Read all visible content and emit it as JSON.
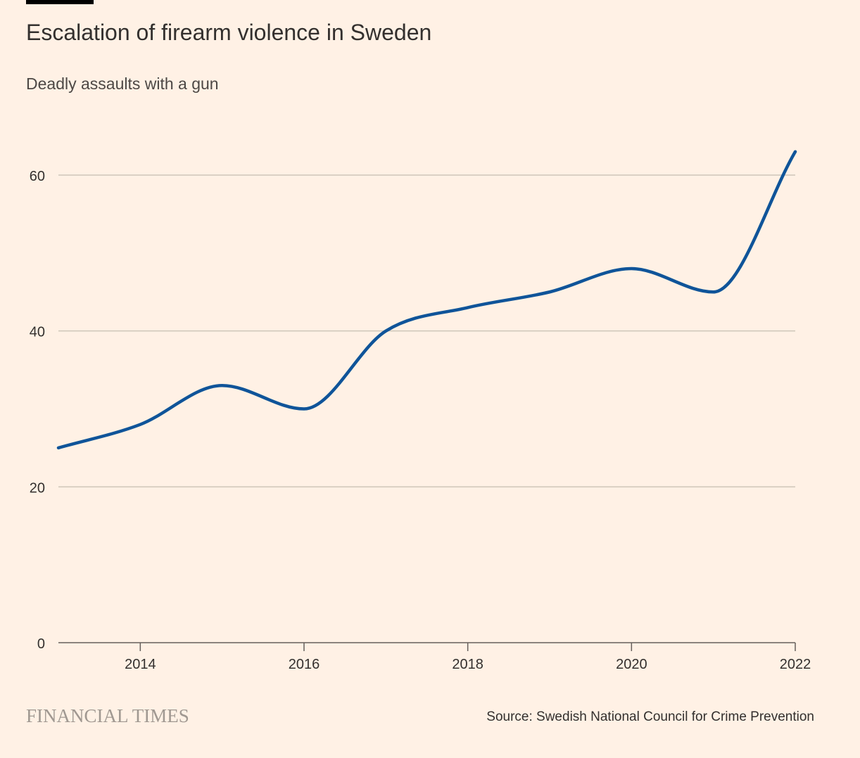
{
  "header": {
    "title": "Escalation of firearm violence in Sweden",
    "subtitle": "Deadly assaults with a gun"
  },
  "footer": {
    "brand": "FINANCIAL TIMES",
    "source": "Source: Swedish National Council for Crime Prevention"
  },
  "colors": {
    "background": "#fff1e5",
    "line": "#0f5499",
    "grid": "#cec6b9",
    "axis": "#66605c",
    "text": "#33302e",
    "brand": "#a09891"
  },
  "chart_data": {
    "type": "line",
    "title": "Escalation of firearm violence in Sweden",
    "subtitle": "Deadly assaults with a gun",
    "xlabel": "",
    "ylabel": "",
    "x": [
      2013,
      2014,
      2015,
      2016,
      2017,
      2018,
      2019,
      2020,
      2021,
      2022
    ],
    "series": [
      {
        "values": [
          25,
          28,
          33,
          30,
          40,
          43,
          45,
          48,
          45,
          63
        ]
      }
    ],
    "xlim": [
      2013,
      2022
    ],
    "ylim": [
      0,
      60
    ],
    "x_ticks": [
      "2014",
      "2016",
      "2018",
      "2020",
      "2022"
    ],
    "y_ticks": [
      "0",
      "20",
      "40",
      "60"
    ],
    "grid": true,
    "legend": "none"
  }
}
